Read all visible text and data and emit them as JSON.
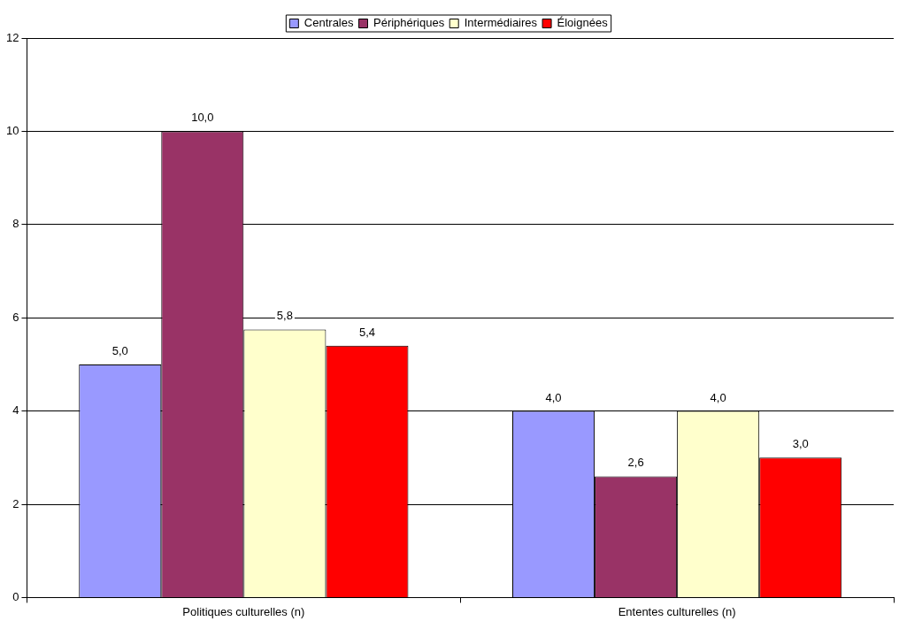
{
  "chart_data": {
    "type": "bar",
    "categories": [
      "Politiques culturelles (n)",
      "Ententes culturelles (n)"
    ],
    "series": [
      {
        "name": "Centrales",
        "color": "#9999ff",
        "values": [
          5.0,
          4.0
        ],
        "value_labels": [
          "5,0",
          "4,0"
        ]
      },
      {
        "name": "Périphériques",
        "color": "#993366",
        "values": [
          10.0,
          2.6
        ],
        "value_labels": [
          "10,0",
          "2,6"
        ]
      },
      {
        "name": "Intermédiaires",
        "color": "#ffffcc",
        "values": [
          5.75,
          4.0
        ],
        "value_labels": [
          "5,8",
          "4,0"
        ]
      },
      {
        "name": "Éloignées",
        "color": "#ff0000",
        "values": [
          5.4,
          3.0
        ],
        "value_labels": [
          "5,4",
          "3,0"
        ]
      }
    ],
    "ylim": [
      0,
      12
    ],
    "yticks": [
      0,
      2,
      4,
      6,
      8,
      10,
      12
    ],
    "grid": "y",
    "legend": "top"
  }
}
